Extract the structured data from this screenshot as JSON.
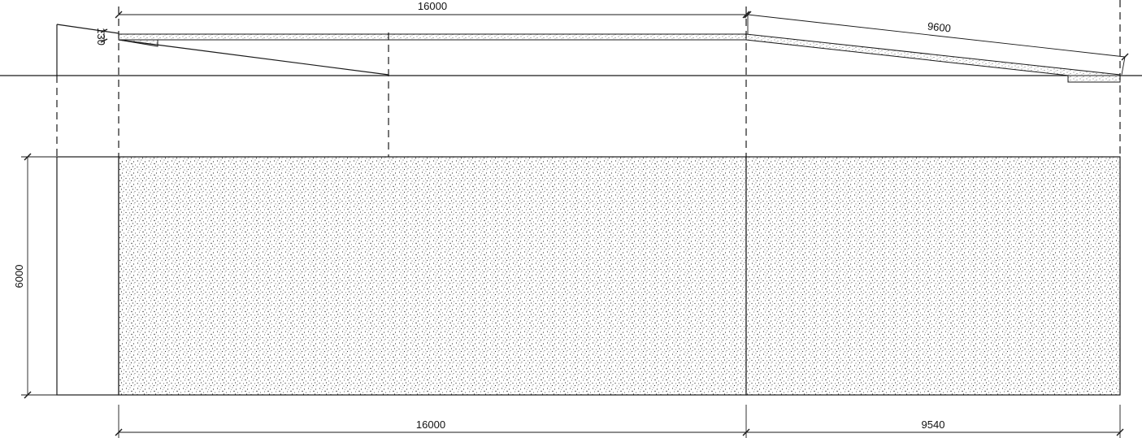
{
  "drawing": {
    "elevation": {
      "span_ramp_flat": "16000",
      "span_ramp_slope": "9600",
      "thickness": "130"
    },
    "plan": {
      "width": "6000",
      "span_flat": "16000",
      "span_slope": "9540"
    },
    "colors": {
      "line": "#1a1a1a",
      "hatch": "#2a2a2a",
      "background": "#ffffff"
    }
  }
}
